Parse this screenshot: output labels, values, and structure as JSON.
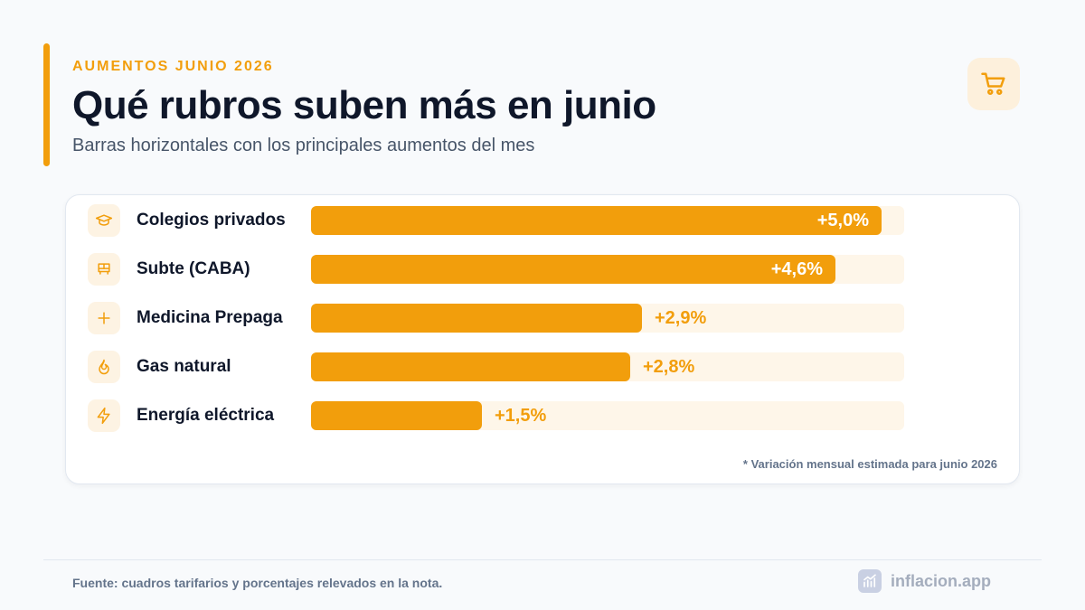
{
  "header": {
    "eyebrow": "AUMENTOS JUNIO 2026",
    "title": "Qué rubros suben más en junio",
    "subtitle": "Barras horizontales con los principales aumentos del mes",
    "badge_icon": "shopping-cart-icon"
  },
  "chart_data": {
    "type": "bar",
    "orientation": "horizontal",
    "categories": [
      "Colegios privados",
      "Subte (CABA)",
      "Medicina Prepaga",
      "Gas natural",
      "Energía eléctrica"
    ],
    "values": [
      5.0,
      4.6,
      2.9,
      2.8,
      1.5
    ],
    "value_labels": [
      "+5,0%",
      "+4,6%",
      "+2,9%",
      "+2,8%",
      "+1,5%"
    ],
    "icons": [
      "graduation-cap-icon",
      "bus-icon",
      "plus-icon",
      "flame-icon",
      "lightning-icon"
    ],
    "xlim": [
      0,
      5.2
    ],
    "colors": {
      "bar": "#f29e0c",
      "track": "#fef6e9"
    },
    "footnote": "* Variación mensual estimada para junio 2026"
  },
  "footer": {
    "source": "Fuente: cuadros tarifarios y porcentajes relevados en la nota.",
    "brand": "inflacion.app",
    "brand_icon": "trend-chart-icon"
  }
}
